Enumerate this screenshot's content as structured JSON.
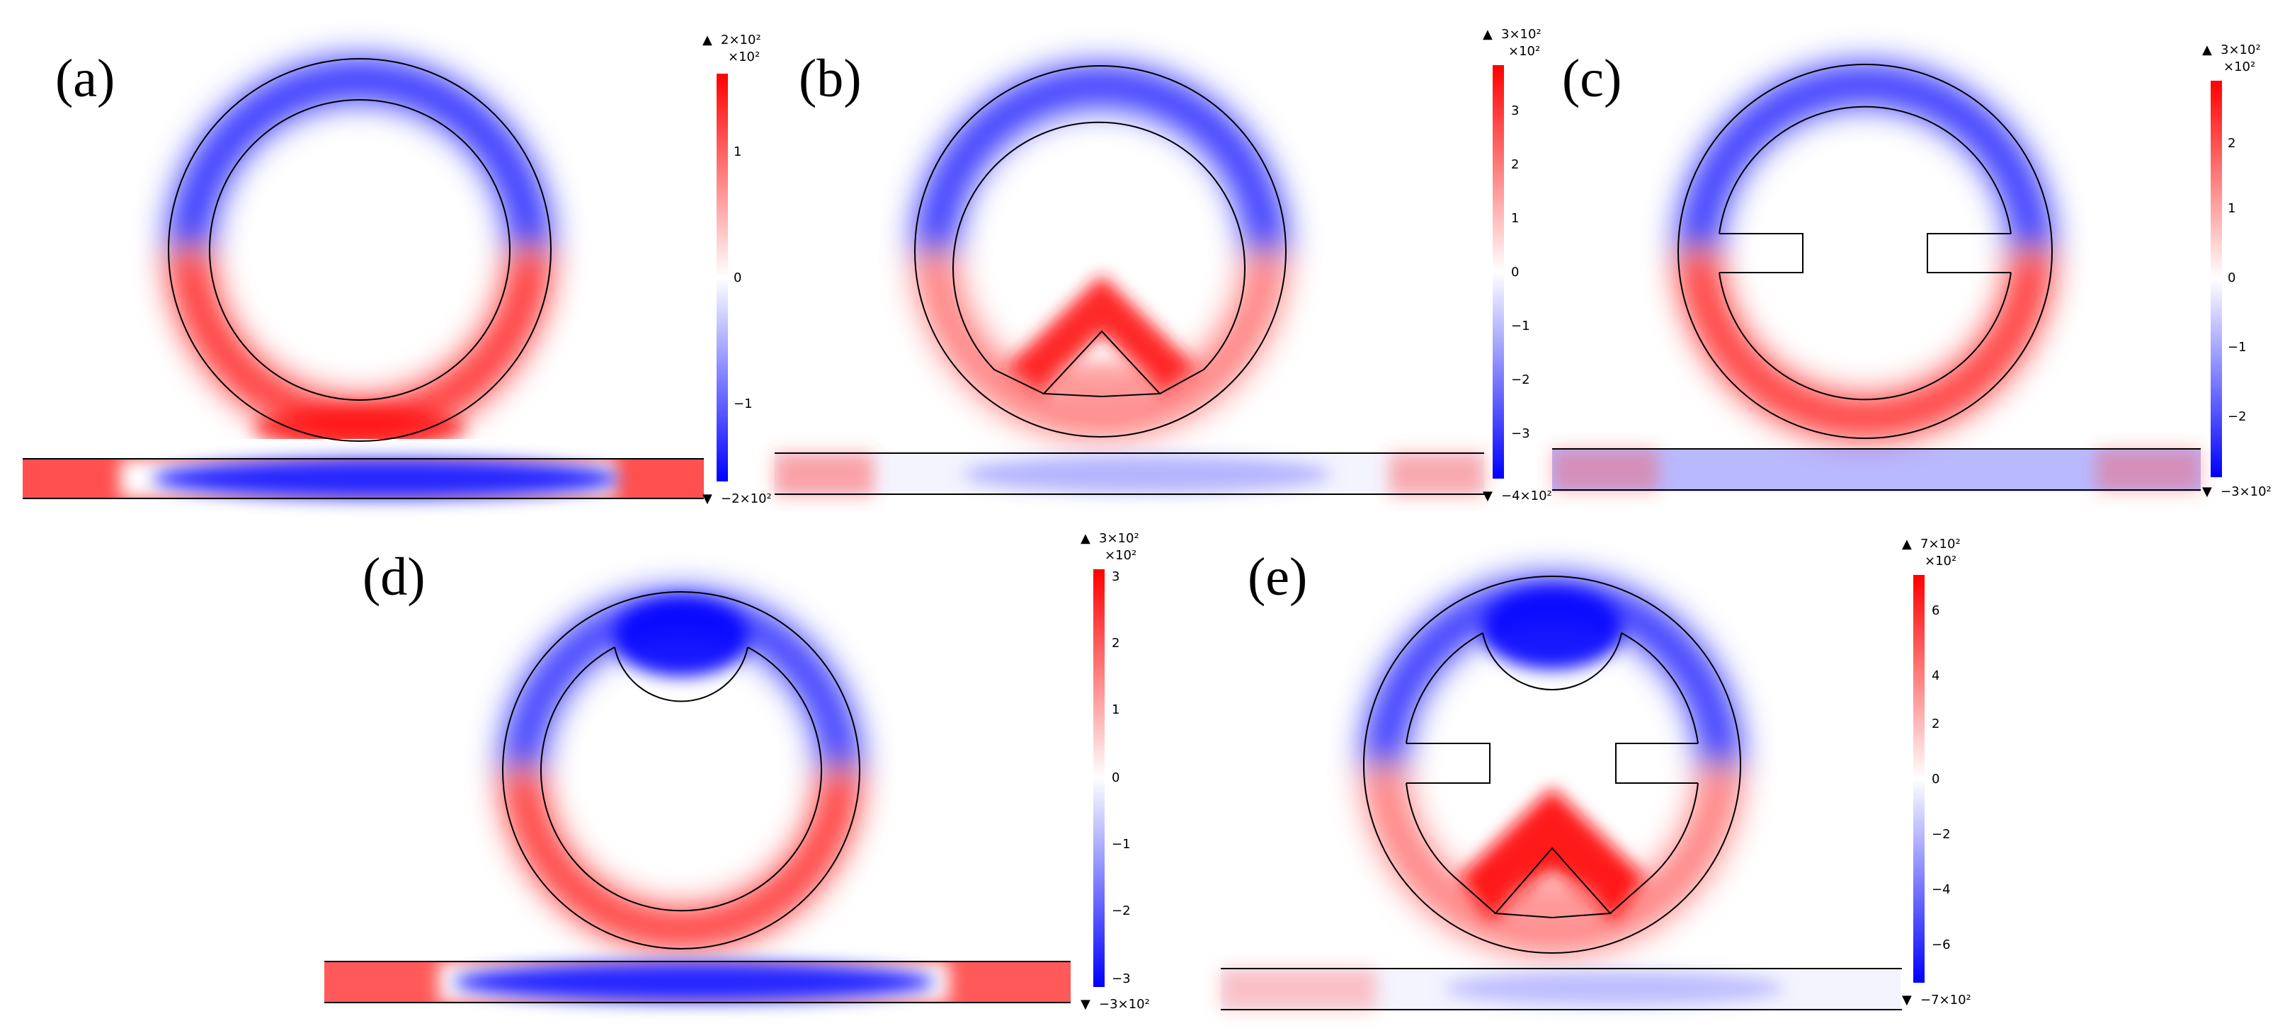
{
  "panels": [
    {
      "label": "(a)",
      "colorbar": {
        "max_label": "2×10²",
        "multiplier": "×10²",
        "ticks": [
          "1",
          "0",
          "−1"
        ],
        "min_label": "−2×10²"
      }
    },
    {
      "label": "(b)",
      "colorbar": {
        "max_label": "3×10²",
        "multiplier": "×10²",
        "ticks": [
          "3",
          "2",
          "1",
          "0",
          "−1",
          "−2",
          "−3"
        ],
        "min_label": "−4×10²"
      }
    },
    {
      "label": "(c)",
      "colorbar": {
        "max_label": "3×10²",
        "multiplier": "×10²",
        "ticks": [
          "2",
          "1",
          "0",
          "−1",
          "−2"
        ],
        "min_label": "−3×10²"
      }
    },
    {
      "label": "(d)",
      "colorbar": {
        "max_label": "3×10²",
        "multiplier": "×10²",
        "ticks": [
          "3",
          "2",
          "1",
          "0",
          "−1",
          "−2",
          "−3"
        ],
        "min_label": "−3×10²"
      }
    },
    {
      "label": "(e)",
      "colorbar": {
        "max_label": "7×10²",
        "multiplier": "×10²",
        "ticks": [
          "6",
          "4",
          "2",
          "0",
          "−2",
          "−4",
          "−6"
        ],
        "min_label": "−7×10²"
      }
    }
  ],
  "colors": {
    "positive": "#ff0000",
    "negative": "#0000ff",
    "zero": "#ffffff",
    "outline": "#000000"
  },
  "markers": {
    "max": "▲",
    "min": "▼"
  }
}
